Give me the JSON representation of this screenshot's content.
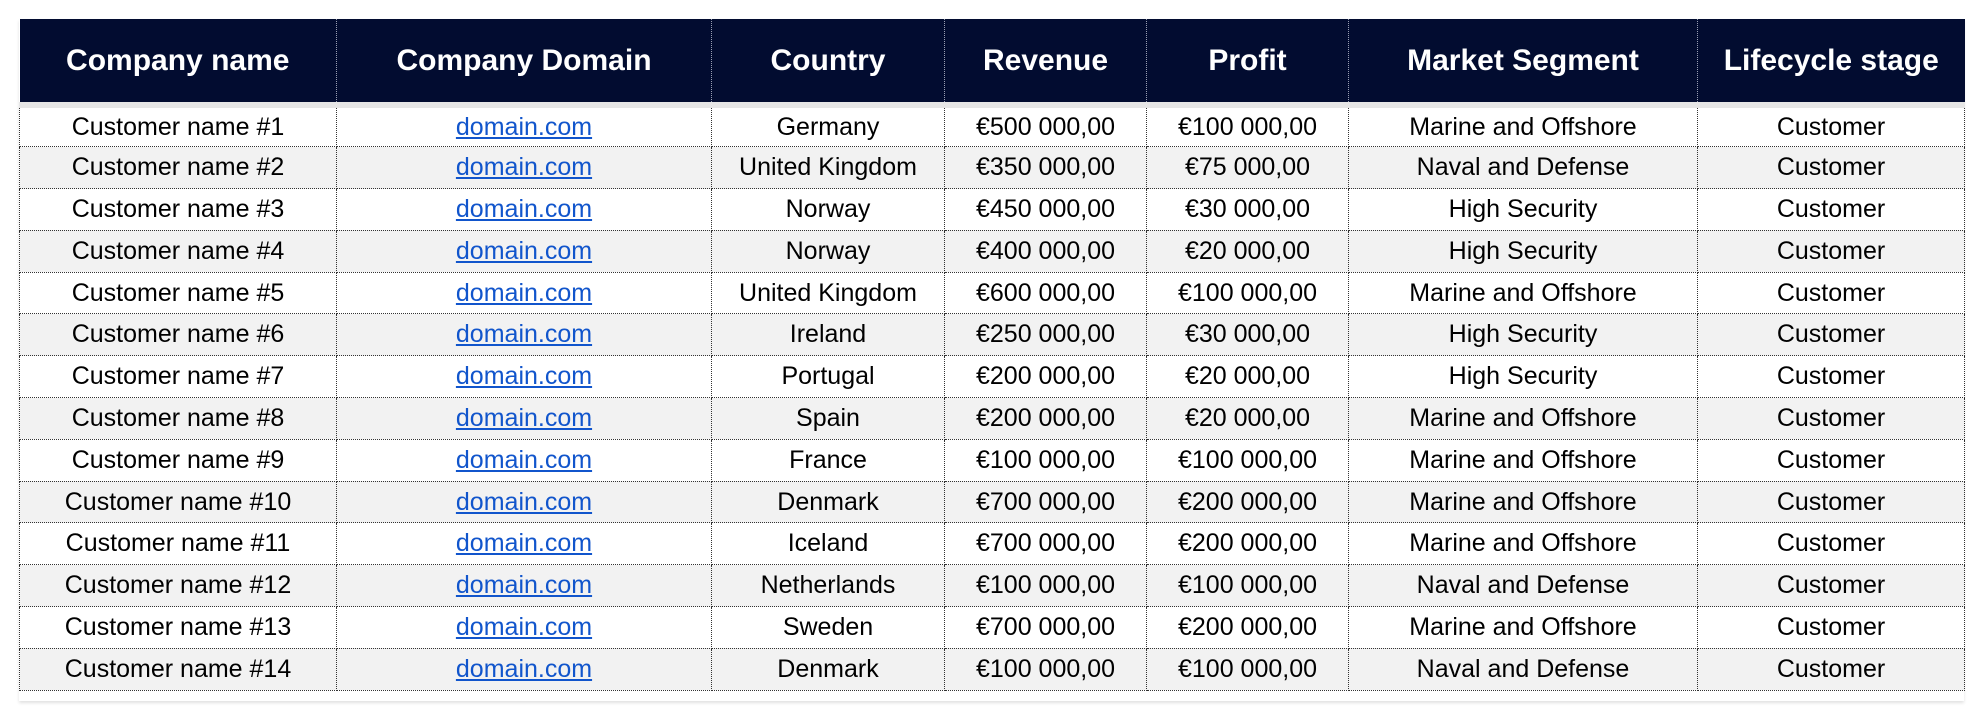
{
  "table": {
    "headers": [
      "Company name",
      "Company Domain",
      "Country",
      "Revenue",
      "Profit",
      "Market Segment",
      "Lifecycle stage"
    ],
    "rows": [
      [
        "Customer name #1",
        "domain.com",
        "Germany",
        "€500 000,00",
        "€100 000,00",
        "Marine and Offshore",
        "Customer"
      ],
      [
        "Customer name #2",
        "domain.com",
        "United Kingdom",
        "€350 000,00",
        "€75 000,00",
        "Naval and Defense",
        "Customer"
      ],
      [
        "Customer name #3",
        "domain.com",
        "Norway",
        "€450 000,00",
        "€30 000,00",
        "High Security",
        "Customer"
      ],
      [
        "Customer name #4",
        "domain.com",
        "Norway",
        "€400 000,00",
        "€20 000,00",
        "High Security",
        "Customer"
      ],
      [
        "Customer name #5",
        "domain.com",
        "United Kingdom",
        "€600 000,00",
        "€100 000,00",
        "Marine and Offshore",
        "Customer"
      ],
      [
        "Customer name #6",
        "domain.com",
        "Ireland",
        "€250 000,00",
        "€30 000,00",
        "High Security",
        "Customer"
      ],
      [
        "Customer name #7",
        "domain.com",
        "Portugal",
        "€200 000,00",
        "€20 000,00",
        "High Security",
        "Customer"
      ],
      [
        "Customer name #8",
        "domain.com",
        "Spain",
        "€200 000,00",
        "€20 000,00",
        "Marine and Offshore",
        "Customer"
      ],
      [
        "Customer name #9",
        "domain.com",
        "France",
        "€100 000,00",
        "€100 000,00",
        "Marine and Offshore",
        "Customer"
      ],
      [
        "Customer name #10",
        "domain.com",
        "Denmark",
        "€700 000,00",
        "€200 000,00",
        "Marine and Offshore",
        "Customer"
      ],
      [
        "Customer name #11",
        "domain.com",
        "Iceland",
        "€700 000,00",
        "€200 000,00",
        "Marine and Offshore",
        "Customer"
      ],
      [
        "Customer name #12",
        "domain.com",
        "Netherlands",
        "€100 000,00",
        "€100 000,00",
        "Naval and Defense",
        "Customer"
      ],
      [
        "Customer name #13",
        "domain.com",
        "Sweden",
        "€700 000,00",
        "€200 000,00",
        "Marine and Offshore",
        "Customer"
      ],
      [
        "Customer name #14",
        "domain.com",
        "Denmark",
        "€100 000,00",
        "€100 000,00",
        "Naval and Defense",
        "Customer"
      ]
    ]
  },
  "colors": {
    "header_bg": "#020c30",
    "header_text": "#ffffff",
    "row_alt_bg": "#f2f2f2",
    "link": "#1155cc"
  }
}
